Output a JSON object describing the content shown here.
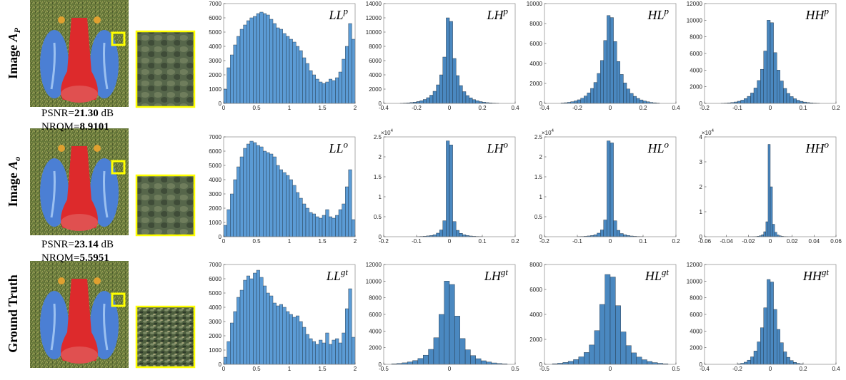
{
  "rows": [
    {
      "label": "Image",
      "symbol": "A",
      "subscript": "P",
      "metrics": {
        "psnr_label": "PSNR=",
        "psnr": "21.30",
        "psnr_unit": " dB",
        "nrqm_label": "NRQM=",
        "nrqm": "8.9101"
      }
    },
    {
      "label": "Image",
      "symbol": "A",
      "subscript": "o",
      "metrics": {
        "psnr_label": "PSNR=",
        "psnr": "23.14",
        "psnr_unit": " dB",
        "nrqm_label": "NRQM=",
        "nrqm": "5.5951"
      }
    },
    {
      "label": "Ground Truth"
    }
  ],
  "chart_data": [
    {
      "type": "histogram",
      "title": "LL",
      "title_sup": "p",
      "color": "#5b9bd5",
      "bins": [
        0,
        0.05,
        0.1,
        0.15,
        0.2,
        0.25,
        0.3,
        0.35,
        0.4,
        0.45,
        0.5,
        0.55,
        0.6,
        0.65,
        0.7,
        0.75,
        0.8,
        0.85,
        0.9,
        0.95,
        1,
        1.05,
        1.1,
        1.15,
        1.2,
        1.25,
        1.3,
        1.35,
        1.4,
        1.45,
        1.5,
        1.55,
        1.6,
        1.65,
        1.7,
        1.75,
        1.8,
        1.85,
        1.9,
        1.95,
        2
      ],
      "counts": [
        1000,
        2500,
        3400,
        4100,
        4700,
        5200,
        5500,
        5800,
        6000,
        6100,
        6300,
        6400,
        6300,
        6200,
        5900,
        5600,
        5300,
        5200,
        4900,
        4700,
        4500,
        4300,
        4000,
        3700,
        3200,
        2800,
        2300,
        2000,
        1700,
        1500,
        1400,
        1500,
        1700,
        1600,
        1800,
        2200,
        3100,
        4000,
        5600,
        4500
      ],
      "xlim": [
        0,
        2
      ],
      "xticks": [
        0,
        0.5,
        1,
        1.5,
        2
      ],
      "ylim": [
        0,
        7000
      ],
      "yticks": [
        0,
        1000,
        2000,
        3000,
        4000,
        5000,
        6000,
        7000
      ]
    },
    {
      "type": "histogram",
      "title": "LH",
      "title_sup": "p",
      "color": "#4a88c0",
      "bins": [
        -0.3,
        -0.28,
        -0.26,
        -0.24,
        -0.22,
        -0.2,
        -0.18,
        -0.16,
        -0.14,
        -0.12,
        -0.1,
        -0.08,
        -0.06,
        -0.04,
        -0.02,
        0,
        0.02,
        0.04,
        0.06,
        0.08,
        0.1,
        0.12,
        0.14,
        0.16,
        0.18,
        0.2,
        0.22,
        0.24,
        0.26,
        0.28,
        0.3
      ],
      "counts": [
        30,
        50,
        80,
        120,
        180,
        260,
        380,
        550,
        800,
        1150,
        1700,
        2600,
        4000,
        6500,
        12000,
        11500,
        6300,
        3900,
        2500,
        1650,
        1100,
        780,
        530,
        370,
        250,
        170,
        110,
        75,
        45,
        25
      ],
      "xlim": [
        -0.4,
        0.4
      ],
      "xticks": [
        -0.4,
        -0.2,
        0,
        0.2,
        0.4
      ],
      "ylim": [
        0,
        14000
      ],
      "yticks": [
        0,
        2000,
        4000,
        6000,
        8000,
        10000,
        12000,
        14000
      ]
    },
    {
      "type": "histogram",
      "title": "HL",
      "title_sup": "p",
      "color": "#4a88c0",
      "bins": [
        -0.3,
        -0.28,
        -0.26,
        -0.24,
        -0.22,
        -0.2,
        -0.18,
        -0.16,
        -0.14,
        -0.12,
        -0.1,
        -0.08,
        -0.06,
        -0.04,
        -0.02,
        0,
        0.02,
        0.04,
        0.06,
        0.08,
        0.1,
        0.12,
        0.14,
        0.16,
        0.18,
        0.2,
        0.22,
        0.24,
        0.26,
        0.28,
        0.3
      ],
      "counts": [
        40,
        70,
        110,
        170,
        250,
        360,
        520,
        740,
        1050,
        1500,
        2100,
        3000,
        4300,
        6300,
        8800,
        8600,
        6200,
        4200,
        2900,
        2050,
        1450,
        1000,
        710,
        500,
        350,
        240,
        160,
        100,
        65,
        35
      ],
      "xlim": [
        -0.4,
        0.4
      ],
      "xticks": [
        -0.4,
        -0.2,
        0,
        0.2,
        0.4
      ],
      "ylim": [
        0,
        10000
      ],
      "yticks": [
        0,
        2000,
        4000,
        6000,
        8000,
        10000
      ]
    },
    {
      "type": "histogram",
      "title": "HH",
      "title_sup": "p",
      "color": "#4a88c0",
      "bins": [
        -0.15,
        -0.14,
        -0.13,
        -0.12,
        -0.11,
        -0.1,
        -0.09,
        -0.08,
        -0.07,
        -0.06,
        -0.05,
        -0.04,
        -0.03,
        -0.02,
        -0.01,
        0,
        0.01,
        0.02,
        0.03,
        0.04,
        0.05,
        0.06,
        0.07,
        0.08,
        0.09,
        0.1,
        0.11,
        0.12,
        0.13,
        0.14,
        0.15
      ],
      "counts": [
        20,
        40,
        70,
        110,
        170,
        260,
        390,
        580,
        850,
        1250,
        1850,
        2750,
        4100,
        6300,
        10000,
        9700,
        6100,
        4000,
        2700,
        1800,
        1200,
        820,
        560,
        380,
        250,
        160,
        100,
        65,
        38,
        18
      ],
      "xlim": [
        -0.2,
        0.2
      ],
      "xticks": [
        -0.2,
        -0.1,
        0,
        0.1,
        0.2
      ],
      "ylim": [
        0,
        12000
      ],
      "yticks": [
        0,
        2000,
        4000,
        6000,
        8000,
        10000,
        12000
      ]
    },
    {
      "type": "histogram",
      "title": "LL",
      "title_sup": "o",
      "color": "#5b9bd5",
      "bins": [
        0,
        0.05,
        0.1,
        0.15,
        0.2,
        0.25,
        0.3,
        0.35,
        0.4,
        0.45,
        0.5,
        0.55,
        0.6,
        0.65,
        0.7,
        0.75,
        0.8,
        0.85,
        0.9,
        0.95,
        1,
        1.05,
        1.1,
        1.15,
        1.2,
        1.25,
        1.3,
        1.35,
        1.4,
        1.45,
        1.5,
        1.55,
        1.6,
        1.65,
        1.7,
        1.75,
        1.8,
        1.85,
        1.9,
        1.95,
        2
      ],
      "counts": [
        800,
        1900,
        3000,
        4000,
        4900,
        5600,
        6200,
        6500,
        6700,
        6600,
        6400,
        6300,
        6000,
        5900,
        5800,
        5600,
        5000,
        4700,
        4500,
        4300,
        4000,
        3600,
        3100,
        2700,
        2300,
        2000,
        1700,
        1600,
        1400,
        1300,
        1500,
        1900,
        1400,
        1300,
        1500,
        1900,
        2300,
        3500,
        4700,
        1200
      ],
      "xlim": [
        0,
        2
      ],
      "xticks": [
        0,
        0.5,
        1,
        1.5,
        2
      ],
      "ylim": [
        0,
        7000
      ],
      "yticks": [
        0,
        1000,
        2000,
        3000,
        4000,
        5000,
        6000,
        7000
      ]
    },
    {
      "type": "histogram",
      "title": "LH",
      "title_sup": "o",
      "color": "#4a88c0",
      "y_scale_base": "×10",
      "y_scale_exp": "4",
      "bins": [
        -0.1,
        -0.09,
        -0.08,
        -0.07,
        -0.06,
        -0.05,
        -0.04,
        -0.03,
        -0.02,
        -0.01,
        0,
        0.01,
        0.02,
        0.03,
        0.04,
        0.05,
        0.06,
        0.07,
        0.08,
        0.09,
        0.1
      ],
      "counts": [
        0.005,
        0.008,
        0.012,
        0.02,
        0.03,
        0.05,
        0.09,
        0.17,
        0.4,
        2.4,
        2.3,
        0.38,
        0.16,
        0.085,
        0.05,
        0.03,
        0.018,
        0.011,
        0.007,
        0.004
      ],
      "xlim": [
        -0.2,
        0.2
      ],
      "xticks": [
        -0.2,
        -0.1,
        0,
        0.1,
        0.2
      ],
      "ylim": [
        0,
        2.5
      ],
      "yticks": [
        0,
        0.5,
        1,
        1.5,
        2,
        2.5
      ]
    },
    {
      "type": "histogram",
      "title": "HL",
      "title_sup": "o",
      "color": "#4a88c0",
      "y_scale_base": "×10",
      "y_scale_exp": "4",
      "bins": [
        -0.1,
        -0.09,
        -0.08,
        -0.07,
        -0.06,
        -0.05,
        -0.04,
        -0.03,
        -0.02,
        -0.01,
        0,
        0.01,
        0.02,
        0.03,
        0.04,
        0.05,
        0.06,
        0.07,
        0.08,
        0.09,
        0.1
      ],
      "counts": [
        0.004,
        0.007,
        0.011,
        0.019,
        0.03,
        0.05,
        0.09,
        0.17,
        0.42,
        2.4,
        2.35,
        0.4,
        0.16,
        0.08,
        0.05,
        0.03,
        0.018,
        0.011,
        0.007,
        0.004
      ],
      "xlim": [
        -0.2,
        0.2
      ],
      "xticks": [
        -0.2,
        -0.1,
        0,
        0.1,
        0.2
      ],
      "ylim": [
        0,
        2.5
      ],
      "yticks": [
        0,
        0.5,
        1,
        1.5,
        2,
        2.5
      ]
    },
    {
      "type": "histogram",
      "title": "HH",
      "title_sup": "o",
      "color": "#4a88c0",
      "y_scale_base": "×10",
      "y_scale_exp": "4",
      "bins": [
        -0.02,
        -0.018,
        -0.016,
        -0.014,
        -0.012,
        -0.01,
        -0.008,
        -0.006,
        -0.004,
        -0.002,
        0,
        0.002,
        0.004,
        0.006,
        0.008,
        0.01,
        0.012,
        0.014,
        0.016,
        0.018,
        0.02
      ],
      "counts": [
        0.002,
        0.004,
        0.006,
        0.01,
        0.02,
        0.04,
        0.08,
        0.2,
        0.6,
        3.7,
        2.0,
        0.5,
        0.18,
        0.07,
        0.035,
        0.018,
        0.01,
        0.006,
        0.003,
        0.002
      ],
      "xlim": [
        -0.06,
        0.06
      ],
      "xticks": [
        -0.06,
        -0.04,
        -0.02,
        0,
        0.02,
        0.04,
        0.06
      ],
      "ylim": [
        0,
        4
      ],
      "yticks": [
        0,
        1,
        2,
        3,
        4
      ]
    },
    {
      "type": "histogram",
      "title": "LL",
      "title_sup": "gt",
      "color": "#5b9bd5",
      "bins": [
        0,
        0.05,
        0.1,
        0.15,
        0.2,
        0.25,
        0.3,
        0.35,
        0.4,
        0.45,
        0.5,
        0.55,
        0.6,
        0.65,
        0.7,
        0.75,
        0.8,
        0.85,
        0.9,
        0.95,
        1,
        1.05,
        1.1,
        1.15,
        1.2,
        1.25,
        1.3,
        1.35,
        1.4,
        1.45,
        1.5,
        1.55,
        1.6,
        1.65,
        1.7,
        1.75,
        1.8,
        1.85,
        1.9,
        1.95,
        2
      ],
      "counts": [
        500,
        1600,
        2900,
        3700,
        4700,
        5200,
        5900,
        6200,
        6000,
        6400,
        6600,
        6100,
        5500,
        5000,
        4800,
        4300,
        4100,
        4200,
        4000,
        3700,
        3500,
        3300,
        3400,
        3000,
        2600,
        2100,
        1800,
        1600,
        1400,
        1700,
        1500,
        2200,
        1400,
        1700,
        1800,
        1500,
        2200,
        3900,
        5300,
        1900
      ],
      "xlim": [
        0,
        2
      ],
      "xticks": [
        0,
        0.5,
        1,
        1.5,
        2
      ],
      "ylim": [
        0,
        7000
      ],
      "yticks": [
        0,
        1000,
        2000,
        3000,
        4000,
        5000,
        6000,
        7000
      ]
    },
    {
      "type": "histogram",
      "title": "LH",
      "title_sup": "gt",
      "color": "#4a88c0",
      "bins": [
        -0.44,
        -0.4,
        -0.36,
        -0.32,
        -0.28,
        -0.24,
        -0.2,
        -0.16,
        -0.12,
        -0.08,
        -0.04,
        0,
        0.04,
        0.08,
        0.12,
        0.16,
        0.2,
        0.24,
        0.28,
        0.32,
        0.36,
        0.4,
        0.44
      ],
      "counts": [
        60,
        110,
        180,
        290,
        450,
        700,
        1100,
        1800,
        3200,
        6000,
        10000,
        9600,
        5800,
        3100,
        1750,
        1050,
        680,
        430,
        280,
        170,
        100,
        55
      ],
      "xlim": [
        -0.5,
        0.5
      ],
      "xticks": [
        -0.5,
        0,
        0.5
      ],
      "ylim": [
        0,
        12000
      ],
      "yticks": [
        0,
        2000,
        4000,
        6000,
        8000,
        10000,
        12000
      ]
    },
    {
      "type": "histogram",
      "title": "HL",
      "title_sup": "gt",
      "color": "#4a88c0",
      "bins": [
        -0.44,
        -0.4,
        -0.36,
        -0.32,
        -0.28,
        -0.24,
        -0.2,
        -0.16,
        -0.12,
        -0.08,
        -0.04,
        0,
        0.04,
        0.08,
        0.12,
        0.16,
        0.2,
        0.24,
        0.28,
        0.32,
        0.36,
        0.4,
        0.44
      ],
      "counts": [
        50,
        90,
        150,
        240,
        380,
        600,
        950,
        1550,
        2700,
        4800,
        7200,
        7000,
        4700,
        2600,
        1500,
        920,
        580,
        370,
        230,
        140,
        85,
        45
      ],
      "xlim": [
        -0.5,
        0.5
      ],
      "xticks": [
        -0.5,
        0,
        0.5
      ],
      "ylim": [
        0,
        8000
      ],
      "yticks": [
        0,
        2000,
        4000,
        6000,
        8000
      ]
    },
    {
      "type": "histogram",
      "title": "HH",
      "title_sup": "gt",
      "color": "#4a88c0",
      "bins": [
        -0.2,
        -0.18,
        -0.16,
        -0.14,
        -0.12,
        -0.1,
        -0.08,
        -0.06,
        -0.04,
        -0.02,
        0,
        0.02,
        0.04,
        0.06,
        0.08,
        0.1,
        0.12,
        0.14,
        0.16,
        0.18,
        0.2
      ],
      "counts": [
        60,
        130,
        260,
        500,
        900,
        1600,
        2700,
        4400,
        6800,
        10200,
        9900,
        6600,
        4200,
        2600,
        1500,
        850,
        460,
        240,
        120,
        55
      ],
      "xlim": [
        -0.4,
        0.4
      ],
      "xticks": [
        -0.4,
        -0.2,
        0,
        0.2,
        0.4
      ],
      "ylim": [
        0,
        12000
      ],
      "yticks": [
        0,
        2000,
        4000,
        6000,
        8000,
        10000,
        12000
      ]
    }
  ]
}
